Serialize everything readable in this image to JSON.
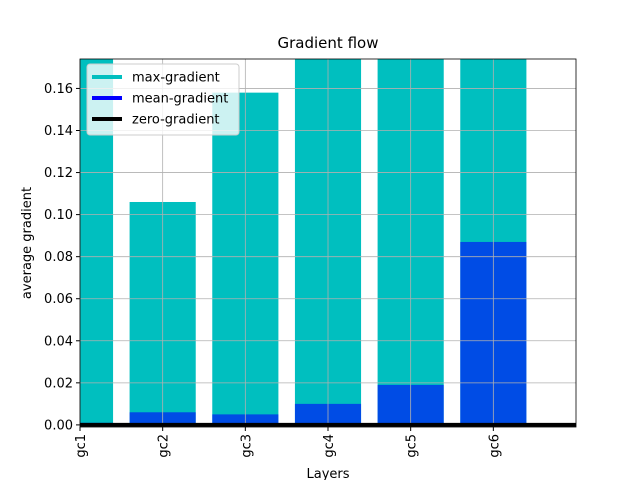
{
  "chart_data": {
    "type": "bar",
    "title": "Gradient flow",
    "x_label": "Layers",
    "y_label": "average gradient",
    "categories": [
      "gc1",
      "gc2",
      "gc3",
      "gc4",
      "gc5",
      "gc6"
    ],
    "series": [
      {
        "name": "max-gradient",
        "color": "#00bfbf",
        "values": [
          0.18,
          0.106,
          0.158,
          0.18,
          0.18,
          0.18
        ]
      },
      {
        "name": "mean-gradient",
        "color": "#0000ff",
        "values": [
          0.001,
          0.006,
          0.005,
          0.01,
          0.019,
          0.087
        ]
      }
    ],
    "lines": [
      {
        "name": "zero-gradient",
        "color": "#000000",
        "y": 0
      }
    ],
    "xlim": [
      0,
      6
    ],
    "ylim": [
      -0.001,
      0.174
    ],
    "yticks": [
      {
        "value": 0,
        "label": "0.00"
      },
      0.02,
      0.04,
      0.06,
      0.08,
      {
        "value": 0.1,
        "label": "0.10"
      },
      0.12,
      0.14,
      0.16
    ],
    "grid": true,
    "legend": "upper left"
  }
}
